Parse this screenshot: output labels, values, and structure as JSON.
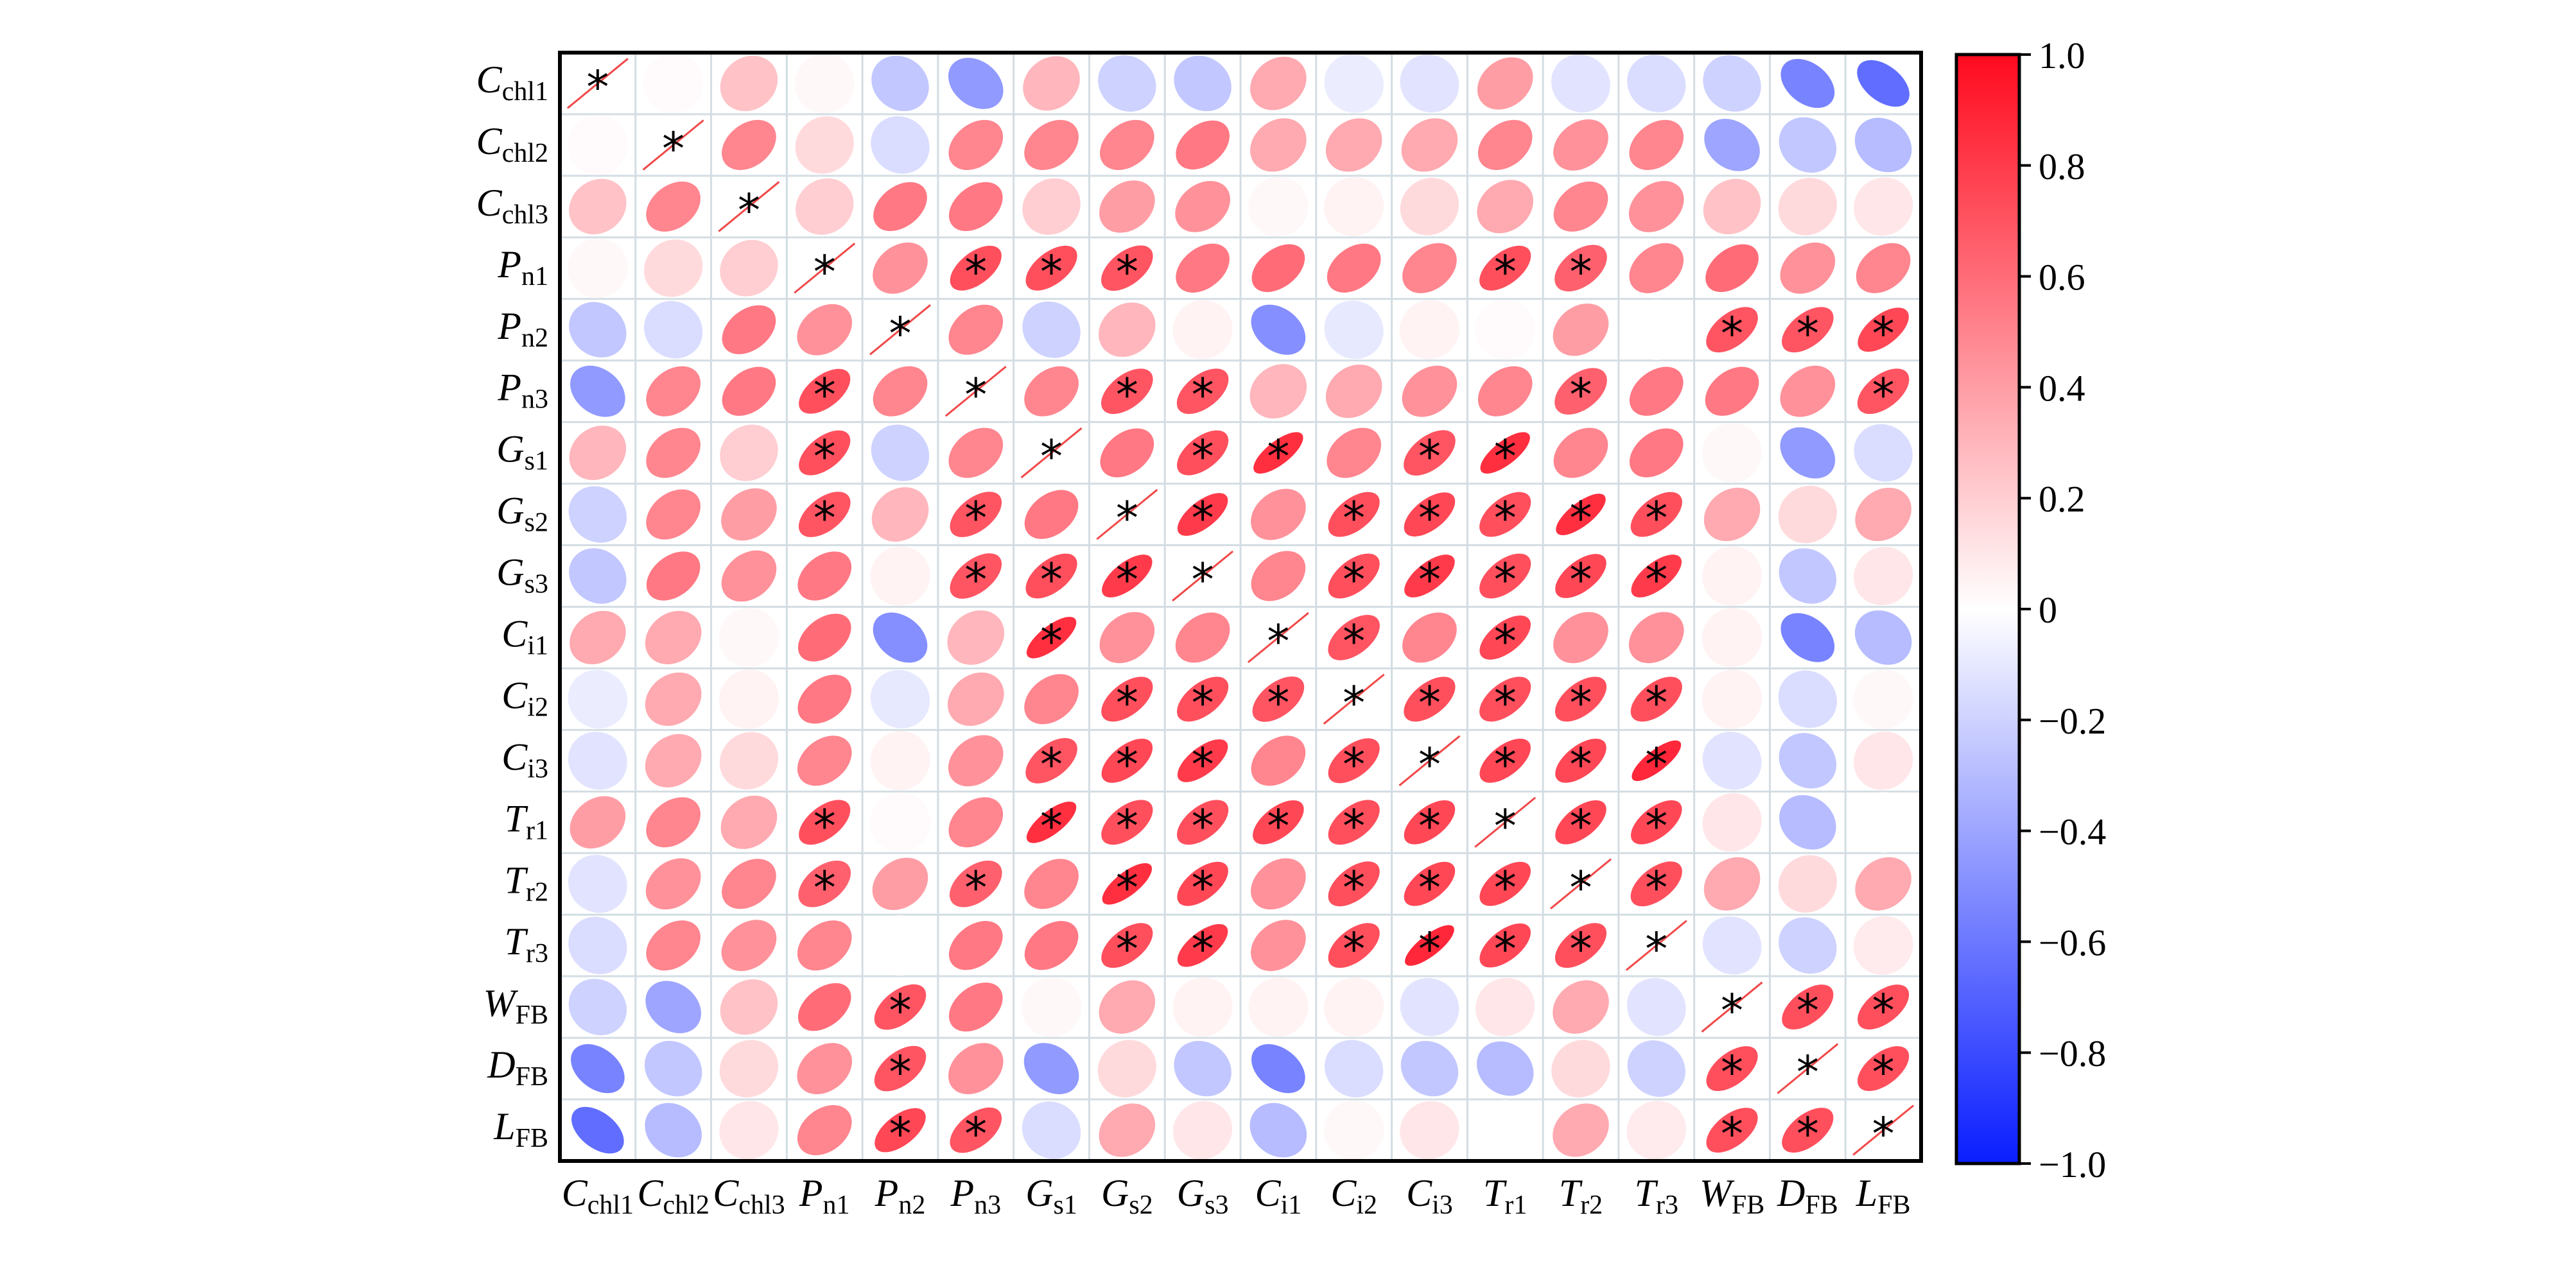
{
  "chart_data": {
    "type": "heatmap",
    "subtype": "correlation-ellipse-matrix",
    "variables": [
      {
        "base": "C",
        "sub": "chl1"
      },
      {
        "base": "C",
        "sub": "chl2"
      },
      {
        "base": "C",
        "sub": "chl3"
      },
      {
        "base": "P",
        "sub": "n1"
      },
      {
        "base": "P",
        "sub": "n2"
      },
      {
        "base": "P",
        "sub": "n3"
      },
      {
        "base": "G",
        "sub": "s1"
      },
      {
        "base": "G",
        "sub": "s2"
      },
      {
        "base": "G",
        "sub": "s3"
      },
      {
        "base": "C",
        "sub": "i1"
      },
      {
        "base": "C",
        "sub": "i2"
      },
      {
        "base": "C",
        "sub": "i3"
      },
      {
        "base": "T",
        "sub": "r1"
      },
      {
        "base": "T",
        "sub": "r2"
      },
      {
        "base": "T",
        "sub": "r3"
      },
      {
        "base": "W",
        "sub": "FB"
      },
      {
        "base": "D",
        "sub": "FB"
      },
      {
        "base": "L",
        "sub": "FB"
      }
    ],
    "matrix": [
      [
        1.0,
        0.02,
        0.25,
        0.03,
        -0.25,
        -0.45,
        0.3,
        -0.2,
        -0.25,
        0.35,
        -0.08,
        -0.12,
        0.4,
        -0.12,
        -0.15,
        -0.2,
        -0.55,
        -0.65
      ],
      [
        0.02,
        1.0,
        0.5,
        0.15,
        -0.15,
        0.5,
        0.5,
        0.5,
        0.55,
        0.35,
        0.35,
        0.35,
        0.5,
        0.45,
        0.5,
        -0.4,
        -0.25,
        -0.3
      ],
      [
        0.25,
        0.5,
        1.0,
        0.2,
        0.55,
        0.55,
        0.2,
        0.4,
        0.45,
        0.03,
        0.05,
        0.15,
        0.35,
        0.5,
        0.45,
        0.25,
        0.15,
        0.1
      ],
      [
        0.03,
        0.15,
        0.2,
        1.0,
        0.45,
        0.72,
        0.72,
        0.7,
        0.55,
        0.6,
        0.55,
        0.5,
        0.72,
        0.65,
        0.5,
        0.6,
        0.45,
        0.5
      ],
      [
        -0.25,
        -0.15,
        0.55,
        0.45,
        1.0,
        0.5,
        -0.2,
        0.3,
        0.05,
        -0.5,
        -0.1,
        0.05,
        0.02,
        0.4,
        0.0,
        0.7,
        0.7,
        0.75
      ],
      [
        -0.45,
        0.5,
        0.55,
        0.72,
        0.5,
        1.0,
        0.5,
        0.7,
        0.7,
        0.3,
        0.35,
        0.45,
        0.5,
        0.65,
        0.55,
        0.55,
        0.45,
        0.7
      ],
      [
        0.3,
        0.5,
        0.2,
        0.72,
        -0.2,
        0.5,
        1.0,
        0.55,
        0.72,
        0.85,
        0.5,
        0.7,
        0.85,
        0.5,
        0.55,
        0.03,
        -0.45,
        -0.15
      ],
      [
        -0.2,
        0.5,
        0.4,
        0.7,
        0.3,
        0.7,
        0.55,
        1.0,
        0.8,
        0.45,
        0.72,
        0.75,
        0.72,
        0.85,
        0.72,
        0.35,
        0.15,
        0.35
      ],
      [
        -0.25,
        0.55,
        0.45,
        0.55,
        0.05,
        0.7,
        0.72,
        0.8,
        1.0,
        0.5,
        0.72,
        0.8,
        0.72,
        0.75,
        0.8,
        0.05,
        -0.25,
        0.1
      ],
      [
        0.35,
        0.35,
        0.03,
        0.6,
        -0.5,
        0.3,
        0.85,
        0.45,
        0.5,
        1.0,
        0.7,
        0.5,
        0.75,
        0.45,
        0.45,
        0.05,
        -0.55,
        -0.3
      ],
      [
        -0.08,
        0.35,
        0.05,
        0.55,
        -0.1,
        0.35,
        0.5,
        0.72,
        0.72,
        0.7,
        1.0,
        0.72,
        0.72,
        0.72,
        0.72,
        0.05,
        -0.15,
        0.03
      ],
      [
        -0.12,
        0.35,
        0.15,
        0.5,
        0.05,
        0.45,
        0.7,
        0.75,
        0.8,
        0.5,
        0.72,
        1.0,
        0.75,
        0.75,
        0.88,
        -0.12,
        -0.25,
        0.1
      ],
      [
        0.4,
        0.5,
        0.35,
        0.72,
        0.02,
        0.5,
        0.85,
        0.72,
        0.72,
        0.75,
        0.72,
        0.75,
        1.0,
        0.75,
        0.75,
        0.1,
        -0.3,
        0.0
      ],
      [
        -0.12,
        0.45,
        0.5,
        0.65,
        0.4,
        0.65,
        0.5,
        0.85,
        0.75,
        0.45,
        0.72,
        0.75,
        0.75,
        1.0,
        0.72,
        0.35,
        0.15,
        0.35
      ],
      [
        -0.15,
        0.5,
        0.45,
        0.5,
        0.0,
        0.55,
        0.55,
        0.72,
        0.8,
        0.45,
        0.72,
        0.88,
        0.75,
        0.72,
        1.0,
        -0.12,
        -0.2,
        0.08
      ],
      [
        -0.2,
        -0.4,
        0.25,
        0.6,
        0.7,
        0.55,
        0.03,
        0.35,
        0.05,
        0.05,
        0.05,
        -0.12,
        0.1,
        0.35,
        -0.12,
        1.0,
        0.72,
        0.72
      ],
      [
        -0.55,
        -0.25,
        0.15,
        0.45,
        0.7,
        0.45,
        -0.45,
        0.15,
        -0.25,
        -0.55,
        -0.15,
        -0.25,
        -0.3,
        0.15,
        -0.2,
        0.72,
        1.0,
        0.72
      ],
      [
        -0.65,
        -0.3,
        0.1,
        0.5,
        0.75,
        0.7,
        -0.15,
        0.35,
        0.1,
        -0.3,
        0.03,
        0.1,
        0.0,
        0.35,
        0.08,
        0.72,
        0.72,
        1.0
      ]
    ],
    "significance_marker": "*",
    "significant_cells": [
      [
        0,
        0
      ],
      [
        1,
        1
      ],
      [
        2,
        2
      ],
      [
        3,
        3
      ],
      [
        3,
        5
      ],
      [
        3,
        6
      ],
      [
        3,
        7
      ],
      [
        3,
        12
      ],
      [
        3,
        13
      ],
      [
        4,
        4
      ],
      [
        4,
        15
      ],
      [
        4,
        16
      ],
      [
        4,
        17
      ],
      [
        5,
        3
      ],
      [
        5,
        5
      ],
      [
        5,
        7
      ],
      [
        5,
        8
      ],
      [
        5,
        13
      ],
      [
        5,
        17
      ],
      [
        6,
        3
      ],
      [
        6,
        6
      ],
      [
        6,
        8
      ],
      [
        6,
        9
      ],
      [
        6,
        11
      ],
      [
        6,
        12
      ],
      [
        7,
        3
      ],
      [
        7,
        5
      ],
      [
        7,
        7
      ],
      [
        7,
        8
      ],
      [
        7,
        10
      ],
      [
        7,
        11
      ],
      [
        7,
        12
      ],
      [
        7,
        13
      ],
      [
        7,
        14
      ],
      [
        8,
        5
      ],
      [
        8,
        6
      ],
      [
        8,
        7
      ],
      [
        8,
        8
      ],
      [
        8,
        10
      ],
      [
        8,
        11
      ],
      [
        8,
        12
      ],
      [
        8,
        13
      ],
      [
        8,
        14
      ],
      [
        9,
        6
      ],
      [
        9,
        9
      ],
      [
        9,
        10
      ],
      [
        9,
        12
      ],
      [
        10,
        7
      ],
      [
        10,
        8
      ],
      [
        10,
        9
      ],
      [
        10,
        10
      ],
      [
        10,
        11
      ],
      [
        10,
        12
      ],
      [
        10,
        13
      ],
      [
        10,
        14
      ],
      [
        11,
        6
      ],
      [
        11,
        7
      ],
      [
        11,
        8
      ],
      [
        11,
        10
      ],
      [
        11,
        11
      ],
      [
        11,
        12
      ],
      [
        11,
        13
      ],
      [
        11,
        14
      ],
      [
        12,
        3
      ],
      [
        12,
        6
      ],
      [
        12,
        7
      ],
      [
        12,
        8
      ],
      [
        12,
        9
      ],
      [
        12,
        10
      ],
      [
        12,
        11
      ],
      [
        12,
        12
      ],
      [
        12,
        13
      ],
      [
        12,
        14
      ],
      [
        13,
        3
      ],
      [
        13,
        5
      ],
      [
        13,
        7
      ],
      [
        13,
        8
      ],
      [
        13,
        10
      ],
      [
        13,
        11
      ],
      [
        13,
        12
      ],
      [
        13,
        13
      ],
      [
        13,
        14
      ],
      [
        14,
        7
      ],
      [
        14,
        8
      ],
      [
        14,
        10
      ],
      [
        14,
        11
      ],
      [
        14,
        12
      ],
      [
        14,
        13
      ],
      [
        14,
        14
      ],
      [
        15,
        4
      ],
      [
        15,
        15
      ],
      [
        15,
        16
      ],
      [
        15,
        17
      ],
      [
        16,
        4
      ],
      [
        16,
        15
      ],
      [
        16,
        16
      ],
      [
        16,
        17
      ],
      [
        17,
        4
      ],
      [
        17,
        5
      ],
      [
        17,
        15
      ],
      [
        17,
        16
      ],
      [
        17,
        17
      ]
    ],
    "colorbar": {
      "range": [
        -1.0,
        1.0
      ],
      "ticks": [
        "1.0",
        "0.8",
        "0.6",
        "0.4",
        "0.2",
        "0",
        "−0.2",
        "−0.4",
        "−0.6",
        "−0.8",
        "−1.0"
      ],
      "colors": {
        "negative": "#0a1eff",
        "zero": "#ffffff",
        "positive": "#ff0a1e"
      }
    },
    "grid": true,
    "grid_color": "#d3dde3"
  }
}
